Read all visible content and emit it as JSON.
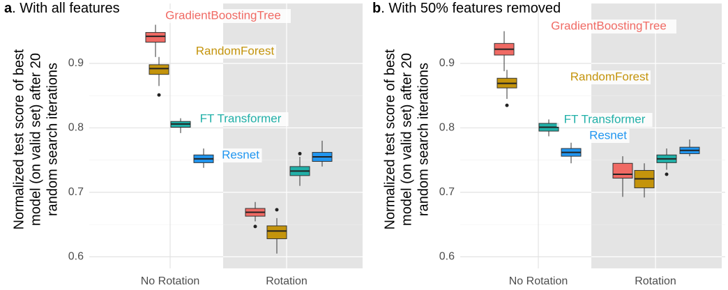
{
  "chart_data": [
    {
      "type": "box",
      "panel": "a",
      "title": ". With all features",
      "ylabel": [
        "Normalized test score of best",
        "model (on valid set) after 20",
        "random search iterations"
      ],
      "categories": [
        "No Rotation",
        "Rotation"
      ],
      "shaded_category": 1,
      "ylim": [
        0.582,
        0.993
      ],
      "yticks": [
        0.6,
        0.7,
        0.8,
        0.9
      ],
      "grid": true,
      "series": [
        {
          "name": "GradientBoostingTree",
          "color": "#f06a64",
          "boxes": [
            {
              "whislo": 0.91,
              "q1": 0.933,
              "med": 0.942,
              "q3": 0.948,
              "whishi": 0.96
            },
            {
              "whislo": 0.655,
              "q1": 0.663,
              "med": 0.669,
              "q3": 0.675,
              "whishi": 0.685,
              "fliers": [
                0.647
              ]
            }
          ]
        },
        {
          "name": "RandomForest",
          "color": "#c4940c",
          "boxes": [
            {
              "whislo": 0.865,
              "q1": 0.883,
              "med": 0.892,
              "q3": 0.898,
              "whishi": 0.91,
              "fliers": [
                0.851
              ]
            },
            {
              "whislo": 0.605,
              "q1": 0.628,
              "med": 0.64,
              "q3": 0.648,
              "whishi": 0.66,
              "fliers": [
                0.673
              ]
            }
          ]
        },
        {
          "name": "FT Transformer",
          "color": "#21b0a8",
          "boxes": [
            {
              "whislo": 0.792,
              "q1": 0.801,
              "med": 0.806,
              "q3": 0.81,
              "whishi": 0.815
            },
            {
              "whislo": 0.71,
              "q1": 0.726,
              "med": 0.733,
              "q3": 0.74,
              "whishi": 0.755,
              "fliers": [
                0.76
              ]
            }
          ]
        },
        {
          "name": "Resnet",
          "color": "#2196f0",
          "boxes": [
            {
              "whislo": 0.738,
              "q1": 0.746,
              "med": 0.752,
              "q3": 0.758,
              "whishi": 0.768
            },
            {
              "whislo": 0.74,
              "q1": 0.748,
              "med": 0.755,
              "q3": 0.762,
              "whishi": 0.78
            }
          ]
        }
      ]
    },
    {
      "type": "box",
      "panel": "b",
      "title": ". With 50% features removed",
      "ylabel": [
        "Normalized test score of best",
        "model (on valid set) after 20",
        "random search iterations"
      ],
      "categories": [
        "No Rotation",
        "Rotation"
      ],
      "shaded_category": 1,
      "ylim": [
        0.582,
        0.993
      ],
      "yticks": [
        0.6,
        0.7,
        0.8,
        0.9
      ],
      "grid": true,
      "series": [
        {
          "name": "GradientBoostingTree",
          "color": "#f06a64",
          "boxes": [
            {
              "whislo": 0.888,
              "q1": 0.913,
              "med": 0.922,
              "q3": 0.931,
              "whishi": 0.95
            },
            {
              "whislo": 0.693,
              "q1": 0.722,
              "med": 0.728,
              "q3": 0.745,
              "whishi": 0.756
            }
          ]
        },
        {
          "name": "RandomForest",
          "color": "#c4940c",
          "boxes": [
            {
              "whislo": 0.845,
              "q1": 0.862,
              "med": 0.869,
              "q3": 0.877,
              "whishi": 0.89,
              "fliers": [
                0.835
              ]
            },
            {
              "whislo": 0.692,
              "q1": 0.707,
              "med": 0.721,
              "q3": 0.734,
              "whishi": 0.745
            }
          ]
        },
        {
          "name": "FT Transformer",
          "color": "#21b0a8",
          "boxes": [
            {
              "whislo": 0.787,
              "q1": 0.795,
              "med": 0.801,
              "q3": 0.807,
              "whishi": 0.813
            },
            {
              "whislo": 0.735,
              "q1": 0.746,
              "med": 0.752,
              "q3": 0.758,
              "whishi": 0.768,
              "fliers": [
                0.728
              ]
            }
          ]
        },
        {
          "name": "Resnet",
          "color": "#2196f0",
          "boxes": [
            {
              "whislo": 0.745,
              "q1": 0.756,
              "med": 0.762,
              "q3": 0.768,
              "whishi": 0.777
            },
            {
              "whislo": 0.756,
              "q1": 0.76,
              "med": 0.765,
              "q3": 0.77,
              "whishi": 0.782
            }
          ]
        }
      ]
    }
  ]
}
